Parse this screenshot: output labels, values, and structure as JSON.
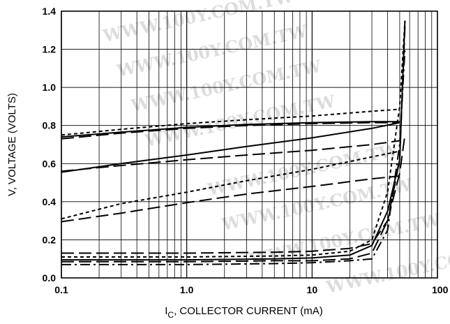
{
  "chart_data": {
    "type": "line",
    "xscale": "log",
    "xlim": [
      0.1,
      100
    ],
    "ylim": [
      0.0,
      1.4
    ],
    "grid": true,
    "legend": "none",
    "xlabel": "I",
    "xlabel_sub": "C",
    "xlabel_rest": ", COLLECTOR CURRENT (mA)",
    "ylabel": "V, VOLTAGE (VOLTS)",
    "x_ticks": [
      {
        "value": 0.1,
        "label": "0.1"
      },
      {
        "value": 1,
        "label": "1.0"
      },
      {
        "value": 10,
        "label": "10"
      },
      {
        "value": 100,
        "label": "100"
      }
    ],
    "y_ticks": [
      {
        "value": 0.0,
        "label": "0.0"
      },
      {
        "value": 0.2,
        "label": "0.2"
      },
      {
        "value": 0.4,
        "label": "0.4"
      },
      {
        "value": 0.6,
        "label": "0.6"
      },
      {
        "value": 0.8,
        "label": "0.8"
      },
      {
        "value": 1.0,
        "label": "1.0"
      },
      {
        "value": 1.2,
        "label": "1.2"
      },
      {
        "value": 1.4,
        "label": "1.4"
      }
    ],
    "watermark": "WWW.100Y.COM.TW",
    "series": [
      {
        "dash": "solid",
        "points": [
          [
            0.1,
            0.74
          ],
          [
            0.3,
            0.765
          ],
          [
            1,
            0.79
          ],
          [
            3,
            0.805
          ],
          [
            10,
            0.815
          ],
          [
            30,
            0.82
          ],
          [
            50,
            0.82
          ]
        ]
      },
      {
        "dash": "short",
        "points": [
          [
            0.1,
            0.75
          ],
          [
            0.3,
            0.78
          ],
          [
            1,
            0.81
          ],
          [
            3,
            0.83
          ],
          [
            10,
            0.85
          ],
          [
            30,
            0.875
          ],
          [
            50,
            0.885
          ]
        ]
      },
      {
        "dash": "long",
        "points": [
          [
            0.1,
            0.73
          ],
          [
            0.3,
            0.76
          ],
          [
            1,
            0.785
          ],
          [
            3,
            0.8
          ],
          [
            10,
            0.81
          ],
          [
            30,
            0.815
          ],
          [
            50,
            0.815
          ]
        ]
      },
      {
        "dash": "solid",
        "points": [
          [
            0.1,
            0.555
          ],
          [
            0.3,
            0.6
          ],
          [
            1,
            0.645
          ],
          [
            3,
            0.69
          ],
          [
            10,
            0.735
          ],
          [
            30,
            0.785
          ],
          [
            50,
            0.815
          ]
        ]
      },
      {
        "dash": "long",
        "points": [
          [
            0.1,
            0.56
          ],
          [
            0.3,
            0.59
          ],
          [
            1,
            0.62
          ],
          [
            3,
            0.645
          ],
          [
            10,
            0.67
          ],
          [
            30,
            0.7
          ],
          [
            50,
            0.72
          ]
        ]
      },
      {
        "dash": "short",
        "points": [
          [
            0.1,
            0.31
          ],
          [
            0.3,
            0.39
          ],
          [
            1,
            0.45
          ],
          [
            3,
            0.51
          ],
          [
            10,
            0.57
          ],
          [
            30,
            0.635
          ],
          [
            50,
            0.665
          ]
        ]
      },
      {
        "dash": "long",
        "points": [
          [
            0.1,
            0.295
          ],
          [
            0.3,
            0.34
          ],
          [
            1,
            0.395
          ],
          [
            3,
            0.44
          ],
          [
            10,
            0.48
          ],
          [
            30,
            0.52
          ],
          [
            50,
            0.535
          ]
        ]
      },
      {
        "dash": "long",
        "points": [
          [
            0.1,
            0.13
          ],
          [
            1,
            0.13
          ],
          [
            5,
            0.135
          ],
          [
            10,
            0.14
          ],
          [
            20,
            0.155
          ],
          [
            30,
            0.18
          ],
          [
            40,
            0.3
          ],
          [
            50,
            0.62
          ],
          [
            55,
            1.32
          ]
        ]
      },
      {
        "dash": "short",
        "points": [
          [
            0.1,
            0.11
          ],
          [
            1,
            0.11
          ],
          [
            5,
            0.115
          ],
          [
            10,
            0.12
          ],
          [
            20,
            0.14
          ],
          [
            30,
            0.2
          ],
          [
            40,
            0.45
          ],
          [
            50,
            0.9
          ],
          [
            55,
            1.35
          ]
        ]
      },
      {
        "dash": "solid",
        "points": [
          [
            0.1,
            0.095
          ],
          [
            1,
            0.095
          ],
          [
            5,
            0.1
          ],
          [
            10,
            0.105
          ],
          [
            20,
            0.12
          ],
          [
            30,
            0.17
          ],
          [
            40,
            0.35
          ],
          [
            50,
            0.62
          ],
          [
            55,
            1.35
          ]
        ]
      },
      {
        "dash": "long",
        "points": [
          [
            0.1,
            0.085
          ],
          [
            1,
            0.085
          ],
          [
            5,
            0.09
          ],
          [
            10,
            0.09
          ],
          [
            20,
            0.1
          ],
          [
            30,
            0.13
          ],
          [
            40,
            0.3
          ],
          [
            50,
            0.55
          ],
          [
            55,
            0.75
          ]
        ]
      },
      {
        "dash": "dashdot",
        "points": [
          [
            0.1,
            0.07
          ],
          [
            1,
            0.07
          ],
          [
            5,
            0.075
          ],
          [
            10,
            0.08
          ],
          [
            20,
            0.09
          ],
          [
            30,
            0.1
          ],
          [
            40,
            0.25
          ],
          [
            50,
            0.7
          ],
          [
            55,
            1.2
          ]
        ]
      }
    ]
  }
}
